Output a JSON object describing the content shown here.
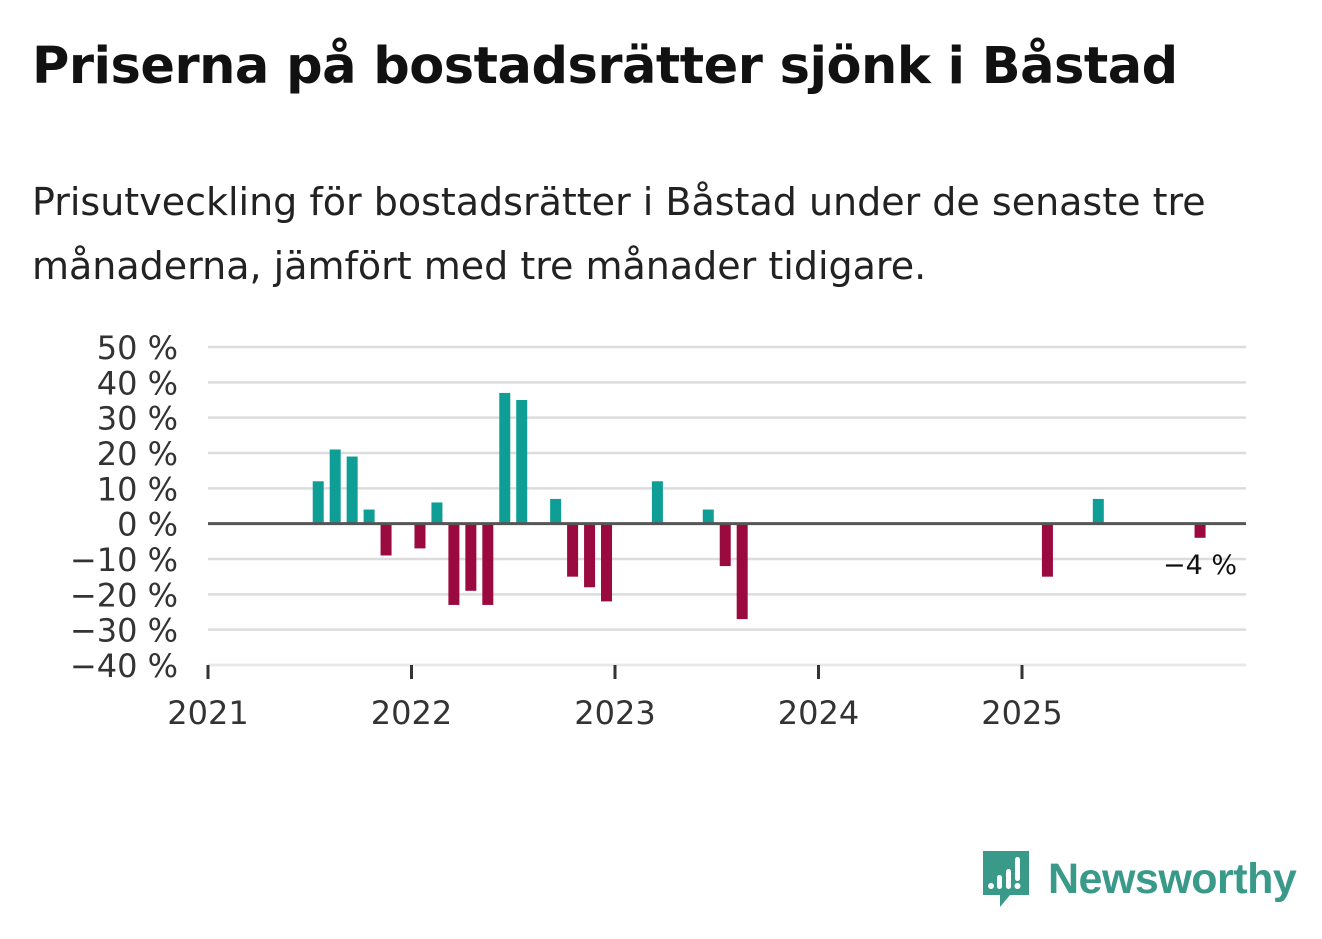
{
  "header": {
    "title": "Priserna på bostadsrätter sjönk i Båstad",
    "subtitle": "Prisutveckling för bostadsrätter i Båstad under de senaste tre månaderna, jämfört med tre månader tidigare."
  },
  "chart_data": {
    "type": "bar",
    "title": "Priserna på bostadsrätter sjönk i Båstad",
    "subtitle": "Prisutveckling för bostadsrätter i Båstad under de senaste tre månaderna, jämfört med tre månader tidigare.",
    "xlabel": "",
    "ylabel": "",
    "ylim": [
      -40,
      50
    ],
    "y_ticks": [
      50,
      40,
      30,
      20,
      10,
      0,
      -10,
      -20,
      -30,
      -40
    ],
    "y_tick_labels": [
      "50 %",
      "40 %",
      "30 %",
      "20 %",
      "10 %",
      "0 %",
      "−10 %",
      "−20 %",
      "−30 %",
      "−40 %"
    ],
    "x_range": [
      2021,
      2026
    ],
    "x_ticks": [
      2021,
      2022,
      2023,
      2024,
      2025
    ],
    "x_tick_labels": [
      "2021",
      "2022",
      "2023",
      "2024",
      "2025"
    ],
    "grid": true,
    "positive_color": "#0e9e96",
    "negative_color": "#9b0a3f",
    "series": [
      {
        "name": "Prisutveckling",
        "points": [
          {
            "date": "2021-07",
            "value": 12
          },
          {
            "date": "2021-08",
            "value": 21
          },
          {
            "date": "2021-09",
            "value": 19
          },
          {
            "date": "2021-10",
            "value": 4
          },
          {
            "date": "2021-11",
            "value": -9
          },
          {
            "date": "2022-01",
            "value": -7
          },
          {
            "date": "2022-02",
            "value": 6
          },
          {
            "date": "2022-03",
            "value": -23
          },
          {
            "date": "2022-04",
            "value": -19
          },
          {
            "date": "2022-05",
            "value": -23
          },
          {
            "date": "2022-06",
            "value": 37
          },
          {
            "date": "2022-07",
            "value": 35
          },
          {
            "date": "2022-09",
            "value": 7
          },
          {
            "date": "2022-10",
            "value": -15
          },
          {
            "date": "2022-11",
            "value": -18
          },
          {
            "date": "2022-12",
            "value": -22
          },
          {
            "date": "2023-03",
            "value": 12
          },
          {
            "date": "2023-06",
            "value": 4
          },
          {
            "date": "2023-07",
            "value": -12
          },
          {
            "date": "2023-08",
            "value": -27
          },
          {
            "date": "2025-02",
            "value": -15
          },
          {
            "date": "2025-05",
            "value": 7
          },
          {
            "date": "2025-11",
            "value": -4
          }
        ]
      }
    ],
    "annotations": [
      {
        "date": "2025-11",
        "text": "−4 %"
      }
    ]
  },
  "logo": {
    "name": "Newsworthy",
    "text": "Newsworthy",
    "color": "#3a9a8a"
  }
}
